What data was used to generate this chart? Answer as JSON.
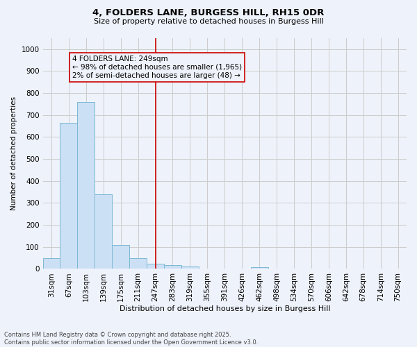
{
  "title_line1": "4, FOLDERS LANE, BURGESS HILL, RH15 0DR",
  "title_line2": "Size of property relative to detached houses in Burgess Hill",
  "xlabel": "Distribution of detached houses by size in Burgess Hill",
  "ylabel": "Number of detached properties",
  "footnote": "Contains HM Land Registry data © Crown copyright and database right 2025.\nContains public sector information licensed under the Open Government Licence v3.0.",
  "bar_labels": [
    "31sqm",
    "67sqm",
    "103sqm",
    "139sqm",
    "175sqm",
    "211sqm",
    "247sqm",
    "283sqm",
    "319sqm",
    "355sqm",
    "391sqm",
    "426sqm",
    "462sqm",
    "498sqm",
    "534sqm",
    "570sqm",
    "606sqm",
    "642sqm",
    "678sqm",
    "714sqm",
    "750sqm"
  ],
  "bar_values": [
    50,
    665,
    760,
    340,
    110,
    50,
    25,
    18,
    10,
    0,
    0,
    0,
    8,
    0,
    0,
    0,
    0,
    0,
    0,
    0,
    0
  ],
  "bar_color": "#cce0f5",
  "bar_edge_color": "#7ab8d4",
  "grid_color": "#cccccc",
  "bg_color": "#eef2fa",
  "vline_x": 6,
  "vline_color": "#cc0000",
  "annotation_text": "4 FOLDERS LANE: 249sqm\n← 98% of detached houses are smaller (1,965)\n2% of semi-detached houses are larger (48) →",
  "annotation_box_color": "#cc0000",
  "ylim": [
    0,
    1050
  ],
  "yticks": [
    0,
    100,
    200,
    300,
    400,
    500,
    600,
    700,
    800,
    900,
    1000
  ],
  "title1_fontsize": 9.5,
  "title2_fontsize": 8.0,
  "xlabel_fontsize": 8.0,
  "ylabel_fontsize": 7.5,
  "tick_fontsize": 7.5,
  "annot_fontsize": 7.5,
  "footnote_fontsize": 6.0
}
